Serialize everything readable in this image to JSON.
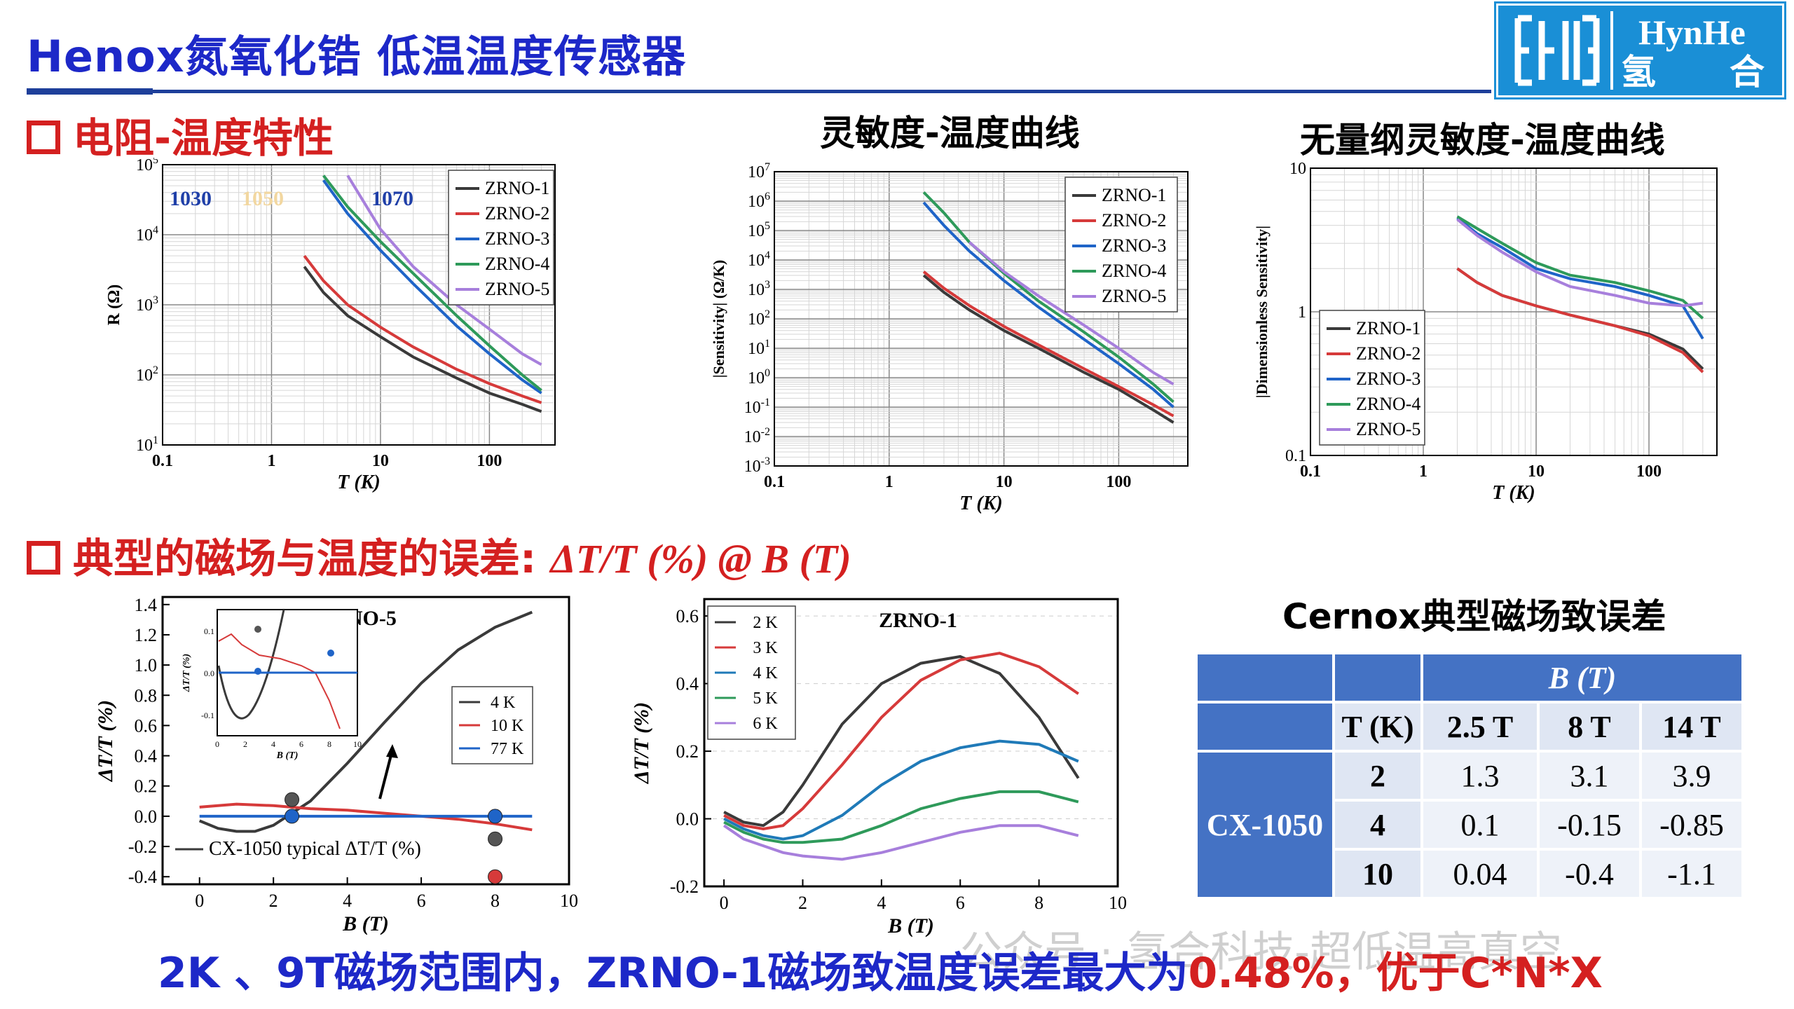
{
  "header": {
    "title": "Henox氮氧化锆 低温温度传感器",
    "logo": {
      "text_en": "HynHe",
      "text_cn1": "氢",
      "text_cn2": "合"
    }
  },
  "sections": {
    "s1": "电阻-温度特性",
    "s2_prefix": "典型的磁场与温度的误差: ",
    "s2_formula": "ΔT/T (%) @ B (T)"
  },
  "charts": {
    "sens_title": "灵敏度-温度曲线",
    "dimless_title": "无量纲灵敏度-温度曲线",
    "cernox_title": "Cernox典型磁场致误差"
  },
  "bottom": {
    "text_main": "2K 、9T磁场范围内，ZRNO-1磁场致温度误差最大为",
    "text_red": "0.48%，优于C*N*X"
  },
  "watermark": "公众号 · 氢合科技-超低温高真空",
  "colors": {
    "ZRNO-1": "#3a3a3a",
    "ZRNO-2": "#d63a3a",
    "ZRNO-3": "#1f64c8",
    "ZRNO-4": "#2e9a5a",
    "ZRNO-5": "#a77fdc"
  },
  "chart_data": [
    {
      "type": "line",
      "xscale": "log",
      "yscale": "log",
      "xlabel": "T (K)",
      "ylabel": "R (Ω)",
      "xlim": [
        0.1,
        400
      ],
      "ylim": [
        10,
        100000
      ],
      "xticks": [
        "0.1",
        "1",
        "10",
        "100"
      ],
      "yticks": [
        "10^1",
        "10^2",
        "10^3",
        "10^4",
        "10^5"
      ],
      "annotations": [
        "1030",
        "1050",
        "1070"
      ],
      "legend": "top-right",
      "series": [
        {
          "name": "ZRNO-1",
          "x": [
            2,
            3,
            5,
            10,
            20,
            50,
            100,
            200,
            300
          ],
          "y": [
            3500,
            1500,
            700,
            350,
            180,
            90,
            55,
            38,
            30
          ]
        },
        {
          "name": "ZRNO-2",
          "x": [
            2,
            3,
            5,
            10,
            20,
            50,
            100,
            200,
            300
          ],
          "y": [
            5000,
            2200,
            1000,
            480,
            250,
            120,
            75,
            50,
            40
          ]
        },
        {
          "name": "ZRNO-3",
          "x": [
            3,
            5,
            10,
            20,
            50,
            100,
            200,
            300
          ],
          "y": [
            60000,
            20000,
            6000,
            2000,
            500,
            200,
            85,
            55
          ]
        },
        {
          "name": "ZRNO-4",
          "x": [
            3,
            5,
            10,
            20,
            50,
            100,
            200,
            300
          ],
          "y": [
            70000,
            25000,
            8000,
            2800,
            700,
            260,
            100,
            60
          ]
        },
        {
          "name": "ZRNO-5",
          "x": [
            5,
            10,
            20,
            50,
            100,
            200,
            300
          ],
          "y": [
            70000,
            12000,
            3500,
            1000,
            450,
            200,
            140
          ]
        }
      ]
    },
    {
      "type": "line",
      "xscale": "log",
      "yscale": "log",
      "title": "灵敏度-温度曲线",
      "xlabel": "T (K)",
      "ylabel": "|Sensitivity| (Ω/K)",
      "xlim": [
        0.1,
        400
      ],
      "ylim": [
        0.001,
        10000000
      ],
      "xticks": [
        "0.1",
        "1",
        "10",
        "100"
      ],
      "yticks": [
        "10^-3",
        "10^-2",
        "10^-1",
        "10^0",
        "10^1",
        "10^2",
        "10^3",
        "10^4",
        "10^5",
        "10^6",
        "10^7"
      ],
      "legend": "top-right",
      "series": [
        {
          "name": "ZRNO-1",
          "x": [
            2,
            3,
            5,
            10,
            20,
            50,
            100,
            200,
            300
          ],
          "y": [
            3000,
            800,
            200,
            40,
            10,
            1.5,
            0.4,
            0.08,
            0.03
          ]
        },
        {
          "name": "ZRNO-2",
          "x": [
            2,
            3,
            5,
            10,
            20,
            50,
            100,
            200,
            300
          ],
          "y": [
            4000,
            1100,
            280,
            55,
            13,
            2,
            0.5,
            0.12,
            0.05
          ]
        },
        {
          "name": "ZRNO-3",
          "x": [
            2,
            3,
            5,
            10,
            20,
            50,
            100,
            200,
            300
          ],
          "y": [
            900000,
            150000,
            20000,
            2000,
            250,
            20,
            3,
            0.4,
            0.1
          ]
        },
        {
          "name": "ZRNO-4",
          "x": [
            2,
            3,
            5,
            10,
            20,
            50,
            100,
            200,
            300
          ],
          "y": [
            2000000,
            400000,
            40000,
            3500,
            400,
            35,
            5,
            0.6,
            0.15
          ]
        },
        {
          "name": "ZRNO-5",
          "x": [
            5,
            10,
            20,
            50,
            100,
            200,
            300
          ],
          "y": [
            40000,
            4000,
            600,
            60,
            10,
            1.5,
            0.6
          ]
        }
      ]
    },
    {
      "type": "line",
      "xscale": "log",
      "yscale": "log",
      "title": "无量纲灵敏度-温度曲线",
      "xlabel": "T (K)",
      "ylabel": "|Dimensionless Sensitivity|",
      "xlim": [
        0.1,
        400
      ],
      "ylim": [
        0.1,
        10
      ],
      "xticks": [
        "0.1",
        "1",
        "10",
        "100"
      ],
      "yticks": [
        "0.1",
        "1",
        "10"
      ],
      "legend": "bottom-left",
      "series": [
        {
          "name": "ZRNO-1",
          "x": [
            2,
            3,
            5,
            10,
            20,
            50,
            100,
            200,
            300
          ],
          "y": [
            2.0,
            1.6,
            1.3,
            1.1,
            0.95,
            0.8,
            0.7,
            0.55,
            0.4
          ]
        },
        {
          "name": "ZRNO-2",
          "x": [
            2,
            3,
            5,
            10,
            20,
            50,
            100,
            200,
            300
          ],
          "y": [
            2.0,
            1.6,
            1.3,
            1.1,
            0.95,
            0.8,
            0.68,
            0.52,
            0.38
          ]
        },
        {
          "name": "ZRNO-3",
          "x": [
            2,
            3,
            5,
            10,
            20,
            50,
            100,
            200,
            300
          ],
          "y": [
            4.5,
            3.5,
            2.8,
            2.0,
            1.7,
            1.5,
            1.3,
            1.1,
            0.65
          ]
        },
        {
          "name": "ZRNO-4",
          "x": [
            2,
            3,
            5,
            10,
            20,
            50,
            100,
            200,
            300
          ],
          "y": [
            4.6,
            3.8,
            3.0,
            2.2,
            1.8,
            1.6,
            1.4,
            1.2,
            0.9
          ]
        },
        {
          "name": "ZRNO-5",
          "x": [
            2,
            3,
            5,
            10,
            20,
            50,
            100,
            200,
            300
          ],
          "y": [
            4.4,
            3.4,
            2.6,
            1.9,
            1.5,
            1.3,
            1.15,
            1.1,
            1.15
          ]
        }
      ]
    },
    {
      "type": "line",
      "title": "ZRNO-5",
      "xlabel": "B (T)",
      "ylabel": "ΔT/T (%)",
      "xlim": [
        -1,
        10
      ],
      "ylim": [
        -0.45,
        1.45
      ],
      "xticks": [
        "0",
        "2",
        "4",
        "6",
        "8",
        "10"
      ],
      "yticks": [
        "-0.4",
        "-0.2",
        "0.0",
        "0.2",
        "0.4",
        "0.6",
        "0.8",
        "1.0",
        "1.2",
        "1.4"
      ],
      "legend_main": "CX-1050 typical ΔT/T (%)",
      "series": [
        {
          "name": "CX-1050 typical ΔT/T (%)",
          "x": [
            0,
            0.5,
            1,
            1.5,
            2,
            3,
            4,
            5,
            6,
            7,
            8,
            9
          ],
          "y": [
            -0.03,
            -0.08,
            -0.1,
            -0.1,
            -0.06,
            0.1,
            0.35,
            0.62,
            0.88,
            1.1,
            1.25,
            1.35
          ]
        },
        {
          "name": "10 K",
          "x": [
            0,
            1,
            2,
            3,
            4,
            5,
            6,
            7,
            8,
            9
          ],
          "y": [
            0.06,
            0.08,
            0.07,
            0.05,
            0.04,
            0.02,
            0.0,
            -0.02,
            -0.05,
            -0.09
          ]
        },
        {
          "name": "77 K",
          "x": [
            0,
            9
          ],
          "y": [
            0.0,
            0.0
          ]
        }
      ],
      "markers": [
        {
          "x": 2.5,
          "y": 0.11,
          "color": "#555555"
        },
        {
          "x": 2.5,
          "y": 0.0,
          "color": "#1f64c8"
        },
        {
          "x": 8,
          "y": 0.0,
          "color": "#1f64c8"
        },
        {
          "x": 8,
          "y": -0.15,
          "color": "#555555"
        },
        {
          "x": 8,
          "y": -0.4,
          "color": "#d63a3a"
        }
      ],
      "inset": {
        "xticks": [
          "0",
          "2",
          "4",
          "6",
          "8",
          "10"
        ],
        "yticks": [
          "-0.1",
          "0.0",
          "0.1"
        ],
        "xlabel": "B (T)",
        "ylabel": "ΔT/T (%)",
        "legend": [
          "4 K",
          "10 K",
          "77 K"
        ]
      }
    },
    {
      "type": "line",
      "title": "ZRNO-1",
      "xlabel": "B (T)",
      "ylabel": "ΔT/T (%)",
      "xlim": [
        -0.5,
        10
      ],
      "ylim": [
        -0.2,
        0.65
      ],
      "xticks": [
        "0",
        "2",
        "4",
        "6",
        "8",
        "10"
      ],
      "yticks": [
        "-0.2",
        "0.0",
        "0.2",
        "0.4",
        "0.6"
      ],
      "legend": "top-left",
      "series": [
        {
          "name": "2 K",
          "x": [
            0,
            0.5,
            1,
            1.5,
            2,
            3,
            4,
            5,
            6,
            7,
            8,
            9
          ],
          "y": [
            0.02,
            -0.01,
            -0.02,
            0.02,
            0.1,
            0.28,
            0.4,
            0.46,
            0.48,
            0.43,
            0.3,
            0.12
          ]
        },
        {
          "name": "3 K",
          "x": [
            0,
            0.5,
            1,
            1.5,
            2,
            3,
            4,
            5,
            6,
            7,
            8,
            9
          ],
          "y": [
            0.01,
            -0.02,
            -0.03,
            -0.02,
            0.03,
            0.16,
            0.3,
            0.41,
            0.47,
            0.49,
            0.45,
            0.37
          ]
        },
        {
          "name": "4 K",
          "x": [
            0,
            0.5,
            1,
            1.5,
            2,
            3,
            4,
            5,
            6,
            7,
            8,
            9
          ],
          "y": [
            0.0,
            -0.03,
            -0.05,
            -0.06,
            -0.05,
            0.01,
            0.1,
            0.17,
            0.21,
            0.23,
            0.22,
            0.17
          ]
        },
        {
          "name": "5 K",
          "x": [
            0,
            0.5,
            1,
            1.5,
            2,
            3,
            4,
            5,
            6,
            7,
            8,
            9
          ],
          "y": [
            -0.01,
            -0.04,
            -0.06,
            -0.07,
            -0.07,
            -0.06,
            -0.02,
            0.03,
            0.06,
            0.08,
            0.08,
            0.05
          ]
        },
        {
          "name": "6 K",
          "x": [
            0,
            0.5,
            1,
            1.5,
            2,
            3,
            4,
            5,
            6,
            7,
            8,
            9
          ],
          "y": [
            -0.02,
            -0.06,
            -0.08,
            -0.1,
            -0.11,
            -0.12,
            -0.1,
            -0.07,
            -0.04,
            -0.02,
            -0.02,
            -0.05
          ]
        }
      ]
    },
    {
      "type": "table",
      "title": "Cernox典型磁场致误差",
      "header_group": "B (T)",
      "columns": [
        "T (K)",
        "2.5 T",
        "8 T",
        "14 T"
      ],
      "row_group": "CX-1050",
      "rows": [
        [
          "2",
          "1.3",
          "3.1",
          "3.9"
        ],
        [
          "4",
          "0.1",
          "-0.15",
          "-0.85"
        ],
        [
          "10",
          "0.04",
          "-0.4",
          "-1.1"
        ]
      ]
    }
  ]
}
